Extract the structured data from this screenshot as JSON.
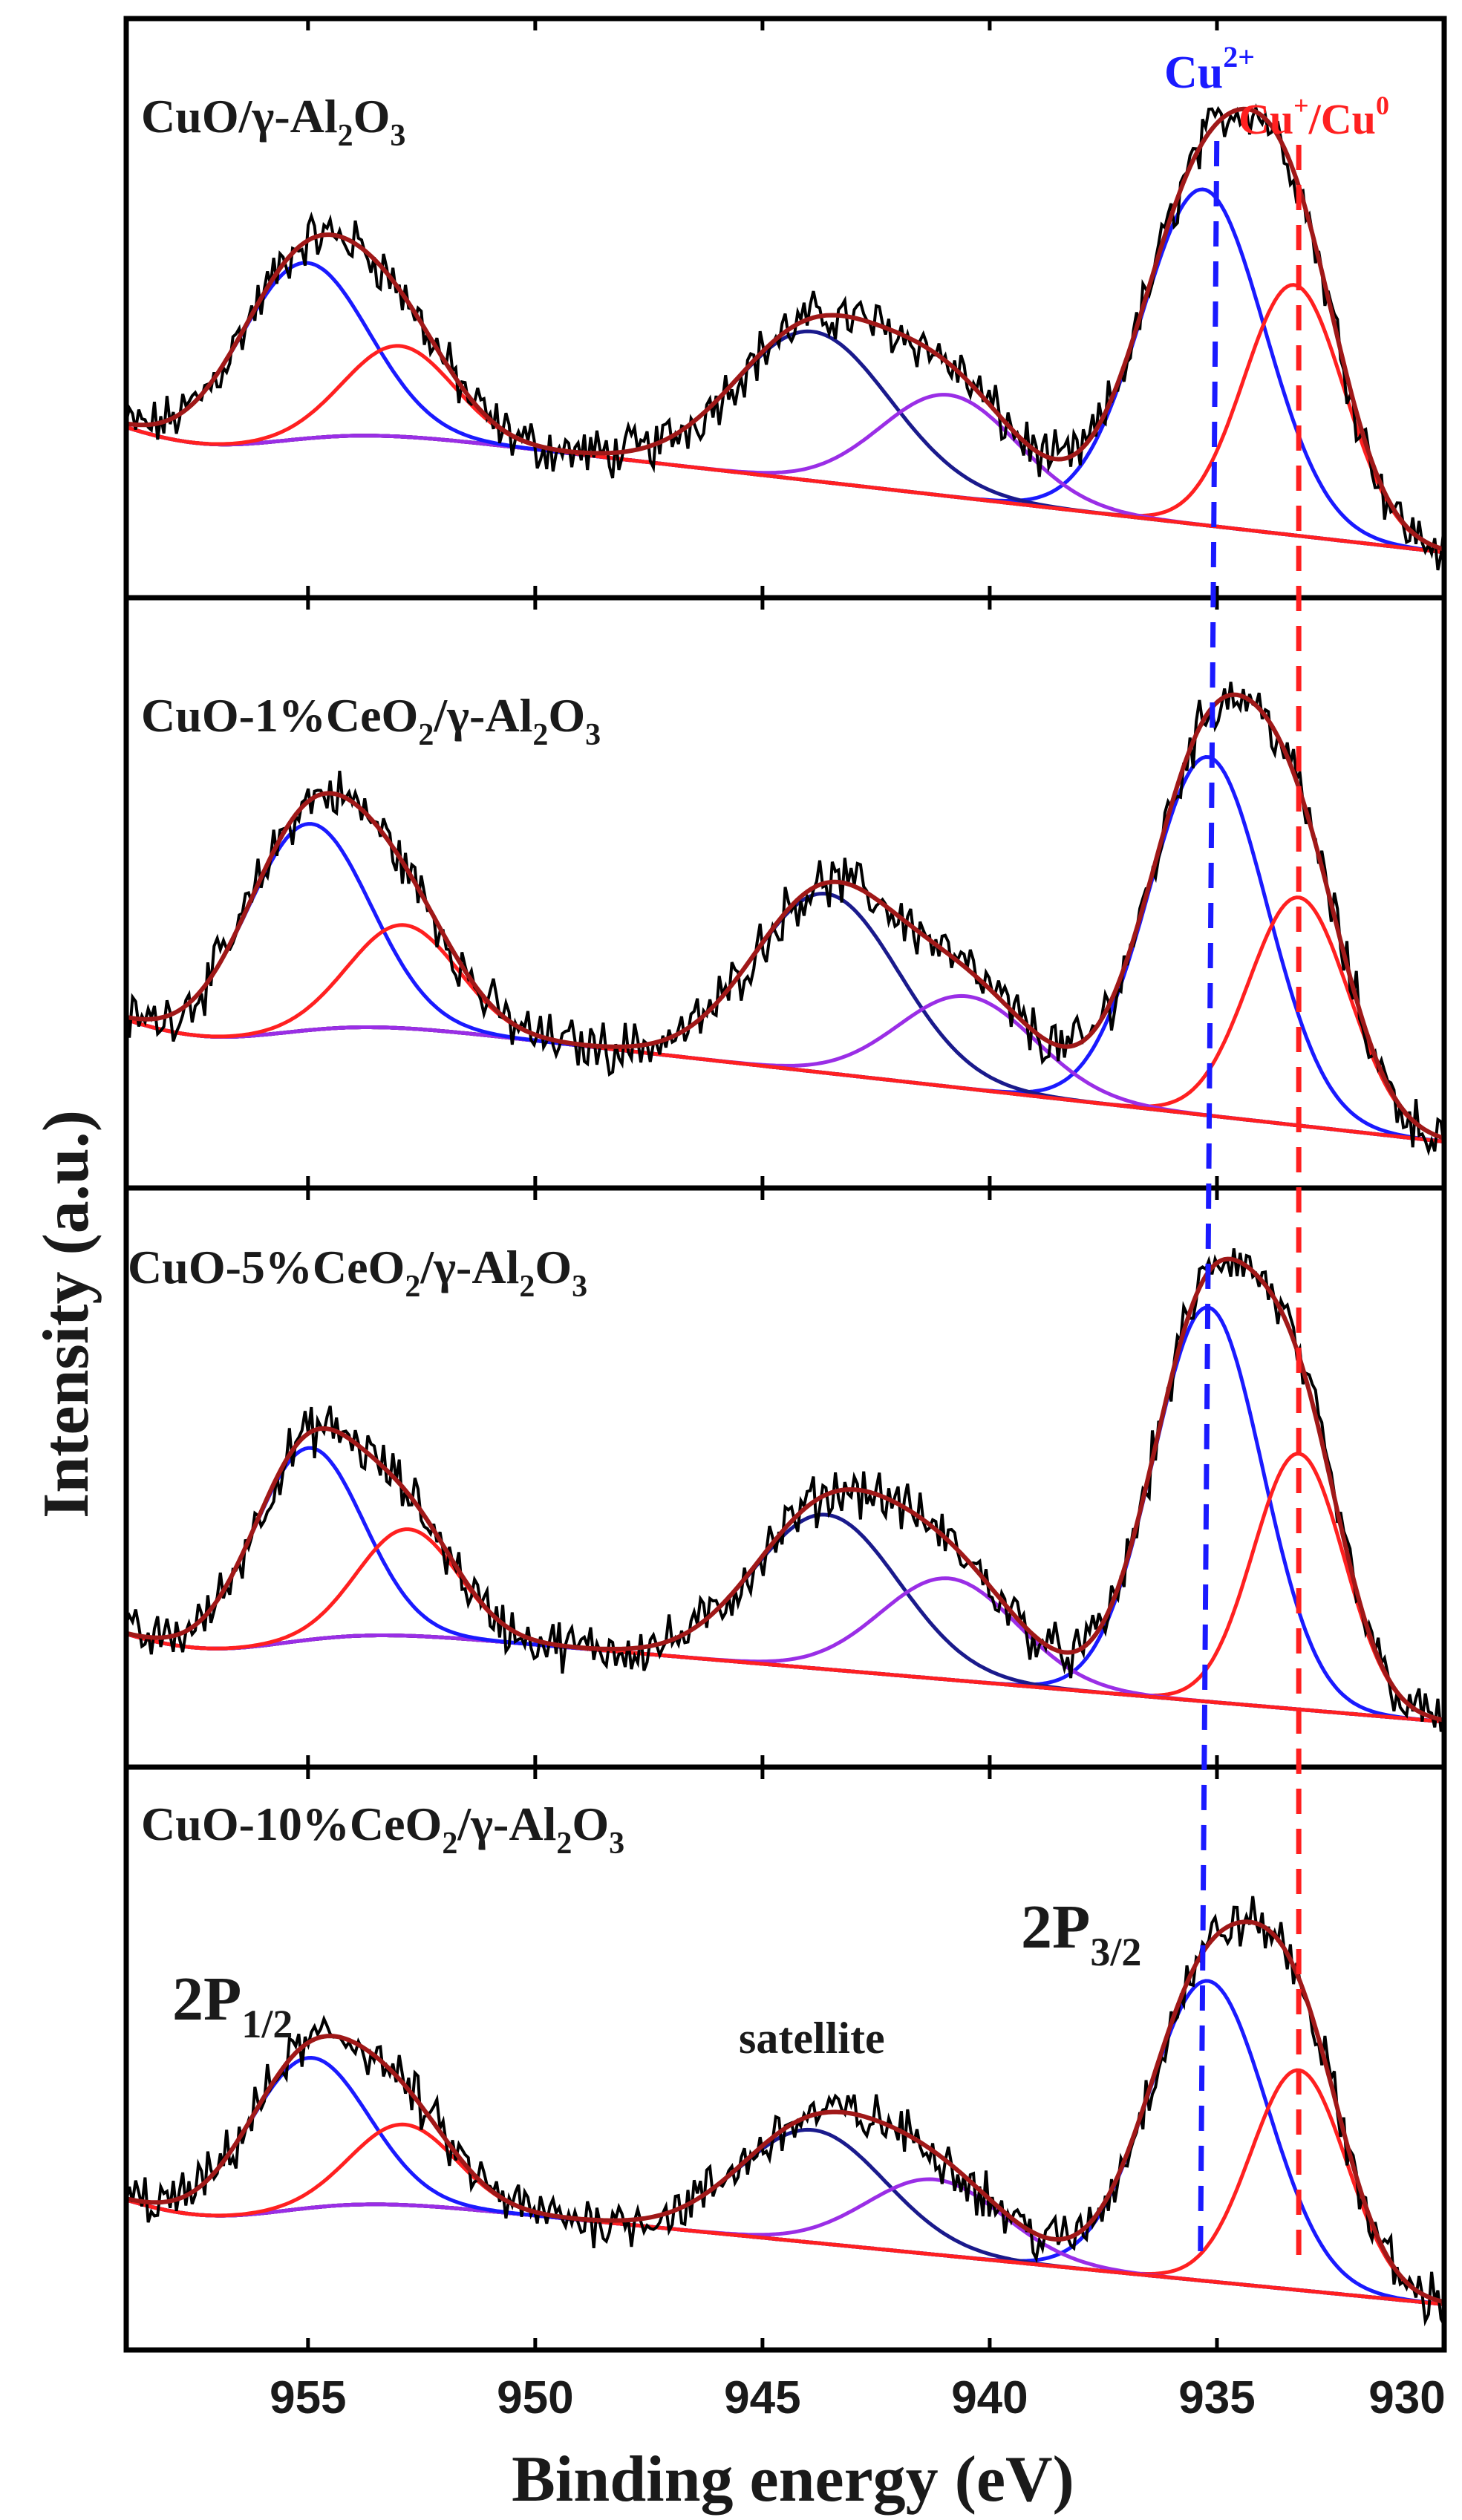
{
  "chart_data": {
    "type": "line",
    "title": "",
    "xlabel": "Binding energy (eV)",
    "ylabel": "Intensity (a.u.)",
    "xlim": [
      959,
      930
    ],
    "x_reversed": true,
    "x_ticks": [
      955,
      950,
      945,
      940,
      935,
      930
    ],
    "x_tick_labels": [
      "955",
      "950",
      "945",
      "940",
      "935",
      "930"
    ],
    "reference_lines": [
      {
        "name": "Cu2+",
        "label_base": "Cu",
        "label_sup": "2+",
        "x": 935.2,
        "color": "#1a1aff"
      },
      {
        "name": "Cu+/Cu0",
        "label_base": "Cu",
        "label_sup1": "+",
        "label_mid": "/Cu",
        "label_sup2": "0",
        "x": 933.2,
        "color": "#ff2020"
      }
    ],
    "annotations": {
      "p12_main": "2P",
      "p12_sub": "1/2",
      "p32_main": "2P",
      "p32_sub": "3/2",
      "satellite": "satellite"
    },
    "colors": {
      "raw": "#000000",
      "envelope": "#a01818",
      "cu2": "#1a1aff",
      "cu1": "#ff2020",
      "sat1": "#1a1a8c",
      "sat2": "#9a2ee6",
      "background": "#1f8c1f",
      "cu2_line": "#1a1aff",
      "cu1_line": "#ff2020"
    },
    "panels": [
      {
        "sample": "CuO/γ-Al2O3",
        "label_parts": [
          "CuO/γ-Al",
          "2",
          "O",
          "3"
        ],
        "baseline": {
          "left": 0.3,
          "right": 0.02
        },
        "components": [
          {
            "name": "Cu2+ 2p3/2",
            "center": 935.3,
            "height": 0.63,
            "sigma": 1.35,
            "color": "#1a1aff"
          },
          {
            "name": "Cu+/Cu0 2p3/2",
            "center": 933.3,
            "height": 0.47,
            "sigma": 1.1,
            "color": "#ff2020"
          },
          {
            "name": "satellite 1",
            "center": 943.9,
            "height": 0.28,
            "sigma": 1.7,
            "color": "#1a1a8c"
          },
          {
            "name": "satellite 2",
            "center": 940.9,
            "height": 0.19,
            "sigma": 1.5,
            "color": "#9a2ee6"
          },
          {
            "name": "Cu2+ 2p1/2",
            "center": 955.1,
            "height": 0.33,
            "sigma": 1.4,
            "color": "#1a1aff"
          },
          {
            "name": "Cu+/Cu0 2p1/2",
            "center": 953.0,
            "height": 0.17,
            "sigma": 1.2,
            "color": "#ff2020"
          }
        ]
      },
      {
        "sample": "CuO-1%CeO2/γ-Al2O3",
        "label_parts": [
          "CuO-1%CeO",
          "2",
          "/γ-Al",
          "2",
          "O",
          "3"
        ],
        "baseline": {
          "left": 0.29,
          "right": 0.02
        },
        "components": [
          {
            "name": "Cu2+ 2p3/2",
            "center": 935.2,
            "height": 0.66,
            "sigma": 1.3,
            "color": "#1a1aff"
          },
          {
            "name": "Cu+/Cu0 2p3/2",
            "center": 933.2,
            "height": 0.42,
            "sigma": 1.1,
            "color": "#ff2020"
          },
          {
            "name": "satellite 1",
            "center": 943.6,
            "height": 0.33,
            "sigma": 1.6,
            "color": "#1a1a8c"
          },
          {
            "name": "satellite 2",
            "center": 940.5,
            "height": 0.17,
            "sigma": 1.5,
            "color": "#9a2ee6"
          },
          {
            "name": "Cu2+ 2p1/2",
            "center": 955.0,
            "height": 0.38,
            "sigma": 1.35,
            "color": "#1a1aff"
          },
          {
            "name": "Cu+/Cu0 2p1/2",
            "center": 952.9,
            "height": 0.19,
            "sigma": 1.2,
            "color": "#ff2020"
          }
        ]
      },
      {
        "sample": "CuO-5%CeO2/γ-Al2O3",
        "label_parts": [
          "CuO-5%CeO",
          "2",
          "/γ-Al",
          "2",
          "O",
          "3"
        ],
        "baseline": {
          "left": 0.23,
          "right": 0.02
        },
        "components": [
          {
            "name": "Cu2+ 2p3/2",
            "center": 935.2,
            "height": 0.74,
            "sigma": 1.2,
            "color": "#1a1aff"
          },
          {
            "name": "Cu+/Cu0 2p3/2",
            "center": 933.2,
            "height": 0.48,
            "sigma": 1.0,
            "color": "#ff2020"
          },
          {
            "name": "satellite 1",
            "center": 943.6,
            "height": 0.29,
            "sigma": 1.6,
            "color": "#1a1a8c"
          },
          {
            "name": "satellite 2",
            "center": 940.9,
            "height": 0.19,
            "sigma": 1.5,
            "color": "#9a2ee6"
          },
          {
            "name": "Cu2+ 2p1/2",
            "center": 955.0,
            "height": 0.36,
            "sigma": 1.2,
            "color": "#1a1aff"
          },
          {
            "name": "Cu+/Cu0 2p1/2",
            "center": 952.8,
            "height": 0.2,
            "sigma": 1.1,
            "color": "#ff2020"
          }
        ]
      },
      {
        "sample": "CuO-10%CeO2/γ-Al2O3",
        "label_parts": [
          "CuO-10%CeO",
          "2",
          "/γ-Al",
          "2",
          "O",
          "3"
        ],
        "baseline": {
          "left": 0.26,
          "right": 0.02
        },
        "components": [
          {
            "name": "Cu2+ 2p3/2",
            "center": 935.2,
            "height": 0.56,
            "sigma": 1.3,
            "color": "#1a1aff"
          },
          {
            "name": "Cu+/Cu0 2p3/2",
            "center": 933.2,
            "height": 0.41,
            "sigma": 1.05,
            "color": "#ff2020"
          },
          {
            "name": "satellite 1",
            "center": 943.9,
            "height": 0.21,
            "sigma": 1.6,
            "color": "#1a1a8c"
          },
          {
            "name": "satellite 2",
            "center": 941.2,
            "height": 0.14,
            "sigma": 1.5,
            "color": "#9a2ee6"
          },
          {
            "name": "Cu2+ 2p1/2",
            "center": 955.0,
            "height": 0.28,
            "sigma": 1.3,
            "color": "#1a1aff"
          },
          {
            "name": "Cu+/Cu0 2p1/2",
            "center": 952.9,
            "height": 0.15,
            "sigma": 1.15,
            "color": "#ff2020"
          }
        ]
      }
    ]
  }
}
